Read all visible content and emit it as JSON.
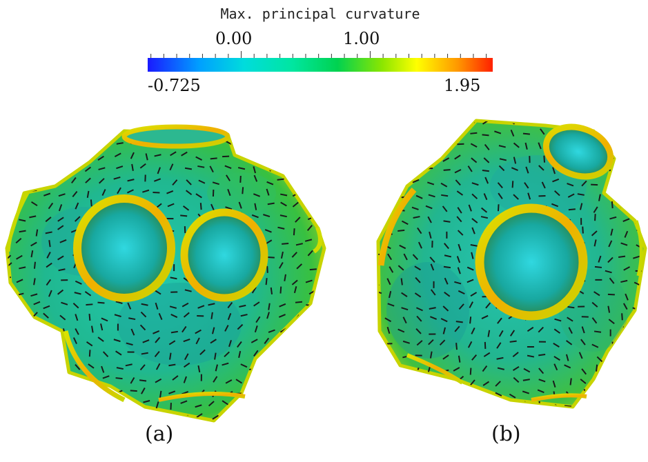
{
  "colorbar": {
    "title": "Max. principal curvature",
    "min": -0.725,
    "max": 1.95,
    "min_label": "-0.725",
    "max_label": "1.95",
    "ticks": [
      {
        "value": 0.0,
        "label": "0.00"
      },
      {
        "value": 1.0,
        "label": "1.00"
      }
    ],
    "colors": [
      "#1a1aff",
      "#00c8ff",
      "#00e6b4",
      "#00dc50",
      "#b4f000",
      "#ffff00",
      "#ff9600",
      "#ff2800"
    ]
  },
  "panels": [
    {
      "label": "(a)"
    },
    {
      "label": "(b)"
    }
  ]
}
